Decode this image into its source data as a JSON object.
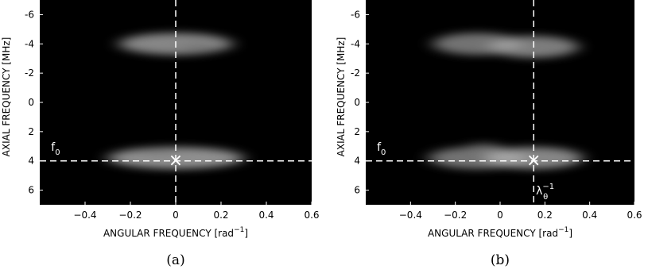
{
  "chart_data": [
    {
      "type": "heatmap",
      "caption": "(a)",
      "xlabel": "ANGULAR FREQUENCY [rad",
      "xlabel_sup": "−1",
      "xlabel_end": "]",
      "ylabel": "AXIAL FREQUENCY [MHz]",
      "xlim": [
        -0.6,
        0.6
      ],
      "ylim": [
        -7,
        7
      ],
      "x_ticks": [
        -0.4,
        -0.2,
        0,
        0.2,
        0.4,
        0.6
      ],
      "x_tick_labels": [
        "−0.4",
        "−0.2",
        "0",
        "0.2",
        "0.4",
        "0.6"
      ],
      "y_ticks": [
        -6,
        -4,
        -2,
        0,
        2,
        4,
        6
      ],
      "y_tick_labels": [
        "-6",
        "-4",
        "-2",
        "0",
        "2",
        "4",
        "6"
      ],
      "colormap": "gray",
      "background": "#000000",
      "vertical_line_x": 0,
      "horizontal_line_y": 4,
      "marker": {
        "x": 0,
        "y": 4,
        "symbol": "×"
      },
      "annotations": [
        {
          "text": "f",
          "sub": "0",
          "x": -0.55,
          "y": 3.3
        }
      ],
      "blobs": [
        {
          "x": 0.0,
          "y": -4.0,
          "sx": 0.25,
          "sy": 0.75,
          "intensity": 0.7
        },
        {
          "x": 0.1,
          "y": -3.8,
          "sx": 0.1,
          "sy": 0.35,
          "intensity": 0.45
        },
        {
          "x": 0.0,
          "y": 3.8,
          "sx": 0.3,
          "sy": 0.75,
          "intensity": 0.75
        },
        {
          "x": -0.07,
          "y": 3.5,
          "sx": 0.1,
          "sy": 0.35,
          "intensity": 0.5
        }
      ]
    },
    {
      "type": "heatmap",
      "caption": "(b)",
      "xlabel": "ANGULAR FREQUENCY [rad",
      "xlabel_sup": "−1",
      "xlabel_end": "]",
      "ylabel": "AXIAL FREQUENCY [MHz]",
      "xlim": [
        -0.6,
        0.6
      ],
      "ylim": [
        -7,
        7
      ],
      "x_ticks": [
        -0.4,
        -0.2,
        0,
        0.2,
        0.4,
        0.6
      ],
      "x_tick_labels": [
        "−0.4",
        "−0.2",
        "0",
        "0.2",
        "0.4",
        "0.6"
      ],
      "y_ticks": [
        -6,
        -4,
        -2,
        0,
        2,
        4,
        6
      ],
      "y_tick_labels": [
        "-6",
        "-4",
        "-2",
        "0",
        "2",
        "4",
        "6"
      ],
      "colormap": "gray",
      "background": "#000000",
      "vertical_line_x": 0.15,
      "horizontal_line_y": 4,
      "marker": {
        "x": 0.15,
        "y": 4,
        "symbol": "×"
      },
      "annotations": [
        {
          "text": "f",
          "sub": "0",
          "x": -0.55,
          "y": 3.3
        },
        {
          "text": "λ",
          "sub": "θ",
          "sup": "−1",
          "x": 0.16,
          "y": 6.3
        }
      ],
      "blobs": [
        {
          "x": -0.1,
          "y": -4.0,
          "sx": 0.2,
          "sy": 0.75,
          "intensity": 0.6
        },
        {
          "x": 0.15,
          "y": -3.8,
          "sx": 0.2,
          "sy": 0.75,
          "intensity": 0.65
        },
        {
          "x": 0.15,
          "y": -3.4,
          "sx": 0.05,
          "sy": 0.25,
          "intensity": 0.5
        },
        {
          "x": -0.1,
          "y": 3.8,
          "sx": 0.22,
          "sy": 0.75,
          "intensity": 0.6
        },
        {
          "x": 0.15,
          "y": 3.8,
          "sx": 0.22,
          "sy": 0.75,
          "intensity": 0.7
        },
        {
          "x": -0.07,
          "y": 3.1,
          "sx": 0.08,
          "sy": 0.3,
          "intensity": 0.45
        }
      ]
    }
  ]
}
